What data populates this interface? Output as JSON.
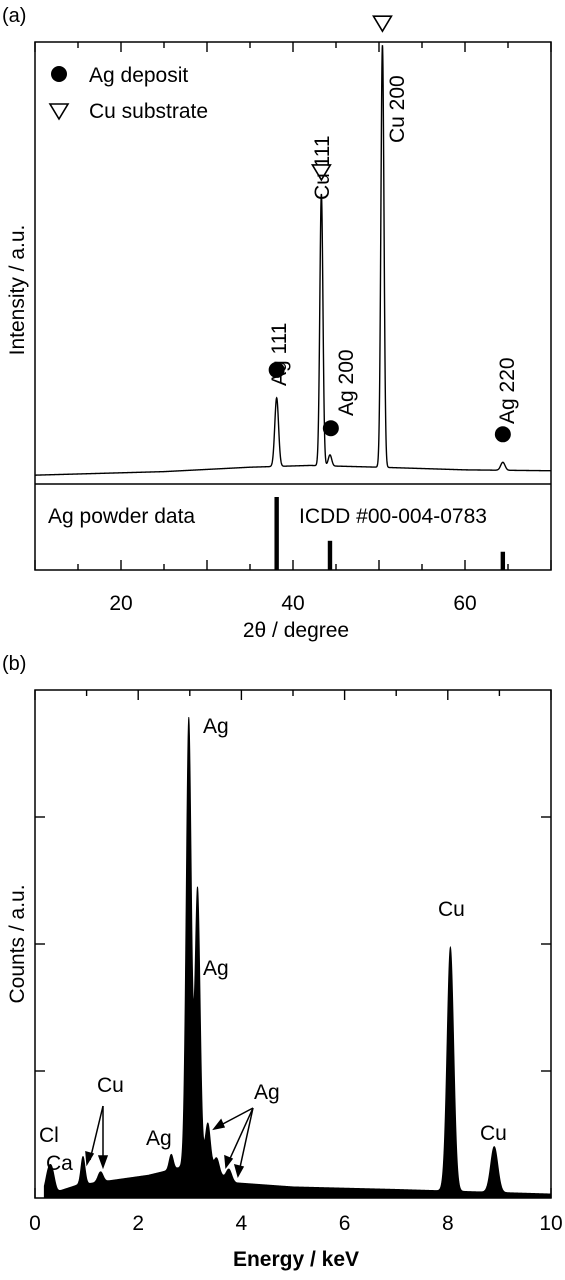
{
  "chart_data": [
    {
      "panel": "(a)",
      "type": "line",
      "xlabel": "2θ / degree",
      "ylabel": "Intensity / a.u.",
      "xlim": [
        10,
        70
      ],
      "ylim": [
        0,
        100
      ],
      "xticks": [
        20,
        40,
        60
      ],
      "grid": false,
      "legend": {
        "position": "top-left",
        "items": [
          {
            "marker": "filled-circle",
            "label": "Ag deposit"
          },
          {
            "marker": "open-down-triangle",
            "label": "Cu substrate"
          }
        ]
      },
      "baseline": [
        [
          10,
          2.0
        ],
        [
          25,
          2.8
        ],
        [
          35,
          3.8
        ],
        [
          42,
          4.2
        ],
        [
          50,
          3.8
        ],
        [
          60,
          3.2
        ],
        [
          70,
          3.0
        ]
      ],
      "peaks": [
        {
          "x": 38.1,
          "height": 15.5,
          "width": 0.22
        },
        {
          "x": 43.3,
          "height": 61.5,
          "width": 0.18
        },
        {
          "x": 44.3,
          "height": 2.5,
          "width": 0.2
        },
        {
          "x": 50.4,
          "height": 95.5,
          "width": 0.18
        },
        {
          "x": 64.4,
          "height": 1.8,
          "width": 0.25
        }
      ],
      "annotations": [
        {
          "label": "Ag 111",
          "marker": "filled-circle",
          "x": 38.1
        },
        {
          "label": "Cu 111",
          "marker": "open-down-triangle",
          "x": 43.3
        },
        {
          "label": "Ag 200",
          "marker": "filled-circle",
          "x": 44.4
        },
        {
          "label": "Cu 200",
          "marker": "open-down-triangle",
          "x": 50.4
        },
        {
          "label": "Ag 220",
          "marker": "filled-circle",
          "x": 64.4
        }
      ],
      "reference": {
        "label": "Ag powder data",
        "source": "ICDD #00-004-0783",
        "lines": [
          {
            "x": 38.1,
            "relative_intensity": 100
          },
          {
            "x": 44.3,
            "relative_intensity": 40
          },
          {
            "x": 64.4,
            "relative_intensity": 25
          }
        ]
      }
    },
    {
      "panel": "(b)",
      "type": "area",
      "xlabel": "Energy / keV",
      "ylabel": "Counts / a.u.",
      "xlim": [
        0,
        10
      ],
      "ylim": [
        0,
        100
      ],
      "xticks": [
        0,
        2,
        4,
        6,
        8,
        10
      ],
      "grid": false,
      "baseline": [
        [
          0.2,
          0.5
        ],
        [
          0.8,
          2.5
        ],
        [
          1.5,
          3.5
        ],
        [
          2.2,
          4.5
        ],
        [
          2.8,
          6
        ],
        [
          3.3,
          6
        ],
        [
          3.9,
          3
        ],
        [
          5,
          2.2
        ],
        [
          7,
          1.7
        ],
        [
          10,
          0.8
        ]
      ],
      "peaks": [
        {
          "x": 0.26,
          "height": 4.5,
          "width": 0.06
        },
        {
          "x": 0.34,
          "height": 3.0,
          "width": 0.05
        },
        {
          "x": 0.93,
          "height": 5.5,
          "width": 0.04
        },
        {
          "x": 1.27,
          "height": 2.0,
          "width": 0.05
        },
        {
          "x": 2.64,
          "height": 3.0,
          "width": 0.04
        },
        {
          "x": 2.98,
          "height": 88.5,
          "width": 0.05
        },
        {
          "x": 3.15,
          "height": 55.0,
          "width": 0.05
        },
        {
          "x": 3.35,
          "height": 9.0,
          "width": 0.05
        },
        {
          "x": 3.52,
          "height": 3.0,
          "width": 0.05
        },
        {
          "x": 3.76,
          "height": 2.0,
          "width": 0.05
        },
        {
          "x": 8.05,
          "height": 48.0,
          "width": 0.065
        },
        {
          "x": 8.9,
          "height": 9.0,
          "width": 0.07
        }
      ],
      "annotations": [
        {
          "label": "Ag",
          "x": 2.98
        },
        {
          "label": "Ag",
          "x": 3.15
        },
        {
          "label": "Ag",
          "x": 2.64
        },
        {
          "label": "Ag",
          "x": 3.5
        },
        {
          "label": "Cu",
          "x": 8.05
        },
        {
          "label": "Cu",
          "x": 8.9
        },
        {
          "label": "Cu",
          "x": 1.1
        },
        {
          "label": "Cl",
          "x": 0.26
        },
        {
          "label": "Ca",
          "x": 0.34
        }
      ]
    }
  ]
}
